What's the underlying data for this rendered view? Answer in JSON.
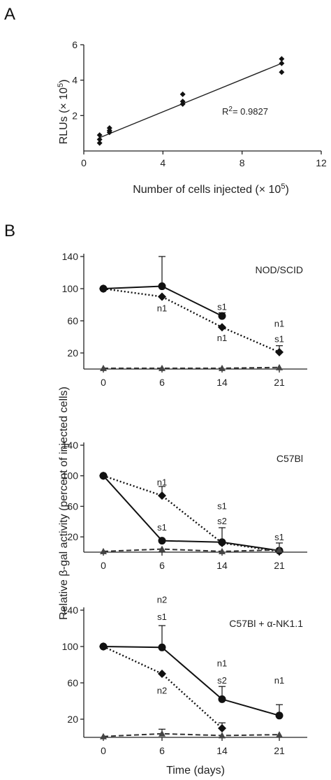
{
  "panel_a": {
    "letter": "A",
    "ylabel_base": "RLUs (× 10",
    "ylabel_exp": "5",
    "ylabel_close": ")",
    "xlabel_base": "Number of cells injected (× 10",
    "xlabel_exp": "5",
    "xlabel_close": ")",
    "r2_label": "R",
    "r2_exp": "2",
    "r2_value": "= 0.9827"
  },
  "panel_b": {
    "letter": "B",
    "ylabel": "Relative β-gal activity (percent of injected cells)",
    "xlabel": "Time (days)"
  },
  "chart_data": [
    {
      "type": "scatter",
      "xlim": [
        0,
        12
      ],
      "ylim": [
        0,
        6
      ],
      "xticks": [
        0,
        4,
        8,
        12
      ],
      "yticks": [
        2,
        4,
        6
      ],
      "points": [
        {
          "x": 0.8,
          "y": 0.45
        },
        {
          "x": 0.8,
          "y": 0.65
        },
        {
          "x": 0.8,
          "y": 0.9
        },
        {
          "x": 1.3,
          "y": 1.05
        },
        {
          "x": 1.3,
          "y": 1.15
        },
        {
          "x": 1.3,
          "y": 1.3
        },
        {
          "x": 5,
          "y": 2.65
        },
        {
          "x": 5,
          "y": 2.8
        },
        {
          "x": 5,
          "y": 3.2
        },
        {
          "x": 10,
          "y": 4.45
        },
        {
          "x": 10,
          "y": 4.95
        },
        {
          "x": 10,
          "y": 5.2
        }
      ],
      "fit": {
        "x": [
          0.8,
          10
        ],
        "y": [
          0.75,
          4.95
        ]
      }
    },
    {
      "type": "line",
      "strain": "NOD/SCID",
      "x": [
        0,
        6,
        14,
        21
      ],
      "ylim": [
        0,
        140
      ],
      "yticks": [
        20,
        60,
        100,
        140
      ],
      "series": [
        {
          "style": "solid",
          "marker": "circle",
          "values": [
            100,
            103,
            66,
            null
          ],
          "errors": [
            0,
            37,
            4,
            0
          ]
        },
        {
          "style": "dotted",
          "marker": "diamond",
          "values": [
            100,
            90,
            52,
            21
          ],
          "errors": [
            0,
            0,
            0,
            8
          ]
        },
        {
          "style": "dashed",
          "marker": "triangle",
          "values": [
            1,
            1,
            1,
            2
          ],
          "errors": [
            0,
            0,
            0,
            0
          ]
        }
      ],
      "annotations": [
        {
          "text": "n1",
          "x": 6,
          "y": 76
        },
        {
          "text": "s1",
          "x": 14,
          "y": 78
        },
        {
          "text": "n1",
          "x": 14,
          "y": 39
        },
        {
          "text": "n1",
          "x": 21,
          "y": 57
        },
        {
          "text": "s1",
          "x": 21,
          "y": 38
        }
      ]
    },
    {
      "type": "line",
      "strain": "C57Bl",
      "x": [
        0,
        6,
        14,
        21
      ],
      "ylim": [
        0,
        140
      ],
      "yticks": [
        20,
        60,
        100,
        140
      ],
      "series": [
        {
          "style": "solid",
          "marker": "circle",
          "values": [
            100,
            15,
            13,
            2
          ],
          "errors": [
            0,
            0,
            0,
            10
          ]
        },
        {
          "style": "dotted",
          "marker": "diamond",
          "values": [
            100,
            74,
            12,
            1
          ],
          "errors": [
            0,
            12,
            20,
            0
          ]
        },
        {
          "style": "dashed",
          "marker": "triangle",
          "values": [
            1,
            4,
            1,
            3
          ],
          "errors": [
            0,
            0,
            0,
            0
          ]
        }
      ],
      "annotations": [
        {
          "text": "n1",
          "x": 6,
          "y": 92
        },
        {
          "text": "s1",
          "x": 14,
          "y": 61
        },
        {
          "text": "s2",
          "x": 14,
          "y": 41
        },
        {
          "text": "s1",
          "x": 6,
          "y": 33
        },
        {
          "text": "s1",
          "x": 21,
          "y": 20
        }
      ]
    },
    {
      "type": "line",
      "strain": "C57Bl + α-NK1.1",
      "x": [
        0,
        6,
        14,
        21
      ],
      "ylim": [
        0,
        140
      ],
      "yticks": [
        20,
        60,
        100,
        140
      ],
      "series": [
        {
          "style": "solid",
          "marker": "circle",
          "values": [
            100,
            99,
            42,
            24
          ],
          "errors": [
            0,
            24,
            14,
            12
          ]
        },
        {
          "style": "dotted",
          "marker": "diamond",
          "values": [
            100,
            70,
            10,
            null
          ],
          "errors": [
            0,
            0,
            6,
            0
          ]
        },
        {
          "style": "dashed",
          "marker": "triangle",
          "values": [
            1,
            4,
            2,
            3
          ],
          "errors": [
            0,
            5,
            0,
            0
          ]
        }
      ],
      "annotations": [
        {
          "text": "n2",
          "x": 6,
          "y": 152
        },
        {
          "text": "s1",
          "x": 6,
          "y": 133
        },
        {
          "text": "n2",
          "x": 6,
          "y": 52
        },
        {
          "text": "n1",
          "x": 14,
          "y": 82
        },
        {
          "text": "s2",
          "x": 14,
          "y": 63
        },
        {
          "text": "n1",
          "x": 21,
          "y": 63
        }
      ]
    }
  ]
}
